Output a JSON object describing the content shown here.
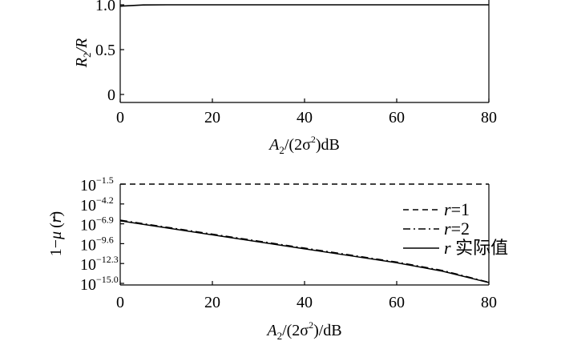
{
  "chart_data": [
    {
      "type": "line",
      "x": [
        0,
        5,
        10,
        20,
        30,
        40,
        50,
        60,
        70,
        80
      ],
      "series": [
        {
          "values": [
            0.985,
            0.998,
            1.0,
            1.0,
            1.0,
            1.0,
            1.0,
            1.0,
            1.0,
            1.0
          ],
          "color": "#000000",
          "dash": "solid"
        }
      ],
      "xlim": [
        0,
        80
      ],
      "ylim": [
        0,
        1
      ],
      "xticks": [
        "0",
        "20",
        "40",
        "60",
        "80"
      ],
      "yticks": [
        "0",
        "0.5",
        "1.0"
      ],
      "ylabel": {
        "base": "R",
        "sub": "2",
        "rest": "/R"
      },
      "xlabel": {
        "base": "A",
        "sub": "2",
        "mid": "/(2σ",
        "sup": "2",
        "rest": ")dB"
      }
    },
    {
      "type": "line",
      "log_scale": true,
      "x": [
        0,
        10,
        20,
        30,
        40,
        50,
        60,
        70,
        80
      ],
      "series": [
        {
          "name": "r=1",
          "label_prefix": "",
          "label_var": "r",
          "label_rest": "=1",
          "values_exp": [
            -1.5,
            -1.5,
            -1.5,
            -1.5,
            -1.5,
            -1.5,
            -1.5,
            -1.5,
            -1.5
          ],
          "dash": "dashed"
        },
        {
          "name": "r=2",
          "label_prefix": "",
          "label_var": "r",
          "label_rest": "=2",
          "values_exp": [
            -6.4,
            -7.35,
            -8.3,
            -9.25,
            -10.2,
            -11.15,
            -12.1,
            -13.25,
            -14.85
          ],
          "dash": "dashdot"
        },
        {
          "name": "r 实际值",
          "label_prefix": "",
          "label_var": "r",
          "label_rest": " 实际值",
          "values_exp": [
            -6.5,
            -7.45,
            -8.4,
            -9.35,
            -10.3,
            -11.25,
            -12.2,
            -13.35,
            -14.9
          ],
          "dash": "solid"
        }
      ],
      "xlim": [
        0,
        80
      ],
      "ylim_exp": [
        -15.0,
        -1.5
      ],
      "xticks": [
        "0",
        "20",
        "40",
        "60",
        "80"
      ],
      "yticks_exp": [
        "-1.5",
        "-4.2",
        "-6.9",
        "-9.6",
        "-12.3",
        "-15.0"
      ],
      "ytick_base": "10",
      "ylabel": {
        "prefix": "1−",
        "var": "μ",
        "rest": "(r)",
        "paren_var": "r"
      },
      "xlabel": {
        "base": "A",
        "sub": "2",
        "mid": "/(2σ",
        "sup": "2",
        "rest": ")/dB"
      },
      "legend_position": "right"
    }
  ]
}
